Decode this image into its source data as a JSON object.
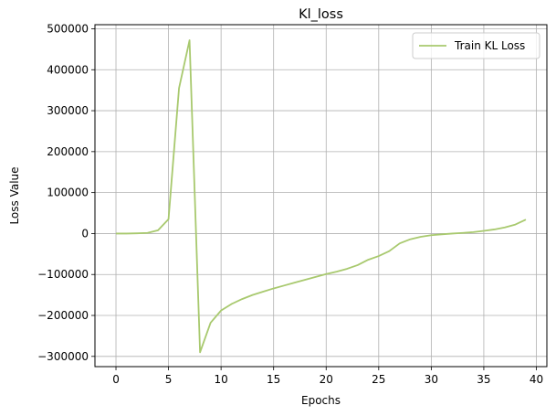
{
  "chart_data": {
    "type": "line",
    "title": "Kl_loss",
    "xlabel": "Epochs",
    "ylabel": "Loss Value",
    "xlim": [
      -2,
      41
    ],
    "ylim": [
      -325000,
      510000
    ],
    "xticks": [
      0,
      5,
      10,
      15,
      20,
      25,
      30,
      35,
      40
    ],
    "yticks": [
      -300000,
      -200000,
      -100000,
      0,
      100000,
      200000,
      300000,
      400000,
      500000
    ],
    "grid": true,
    "legend_position": "top-right",
    "series": [
      {
        "name": "Train KL Loss",
        "color": "#a8c96e",
        "x": [
          0,
          1,
          2,
          3,
          4,
          5,
          6,
          7,
          8,
          9,
          10,
          11,
          12,
          13,
          14,
          15,
          16,
          17,
          18,
          19,
          20,
          21,
          22,
          23,
          24,
          25,
          26,
          27,
          28,
          29,
          30,
          31,
          32,
          33,
          34,
          35,
          36,
          37,
          38,
          39
        ],
        "values": [
          0,
          0,
          500,
          1500,
          8000,
          35000,
          355000,
          472000,
          -290000,
          -218000,
          -188000,
          -172000,
          -160000,
          -150000,
          -142000,
          -134000,
          -127000,
          -120000,
          -113000,
          -106000,
          -99000,
          -93000,
          -86000,
          -77000,
          -64000,
          -55000,
          -43000,
          -24000,
          -14000,
          -8000,
          -4000,
          -2000,
          0,
          1500,
          3500,
          6500,
          10000,
          15000,
          22000,
          34000
        ]
      }
    ]
  }
}
